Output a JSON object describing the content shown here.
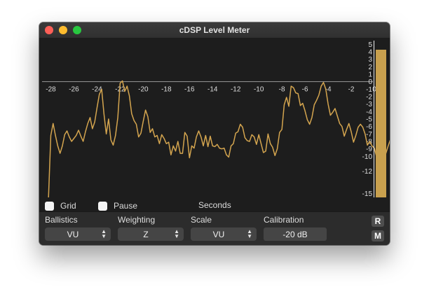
{
  "window": {
    "title": "cDSP Level Meter"
  },
  "options": {
    "grid_label": "Grid",
    "pause_label": "Pause",
    "grid_checked": false,
    "pause_checked": false
  },
  "axis": {
    "x_title": "Seconds"
  },
  "controls": {
    "ballistics": {
      "label": "Ballistics",
      "value": "VU"
    },
    "weighting": {
      "label": "Weighting",
      "value": "Z"
    },
    "scale": {
      "label": "Scale",
      "value": "VU"
    },
    "calibration": {
      "label": "Calibration",
      "value": "-20 dB"
    },
    "r_button": "R",
    "m_button": "M"
  },
  "colors": {
    "trace": "#d4a54f",
    "background": "#1d1d1d",
    "zero_line": "#9a9a9a"
  },
  "chart_data": {
    "type": "line",
    "xlabel": "Seconds",
    "ylabel": "",
    "xlim": [
      -29,
      0
    ],
    "ylim": [
      -15.5,
      5.5
    ],
    "x_ticks": [
      -28,
      -26,
      -24,
      -22,
      -20,
      -18,
      -16,
      -14,
      -12,
      -10,
      -8,
      -6,
      -4,
      -2,
      0
    ],
    "x_tick_labels": [
      "-28",
      "-26",
      "-24",
      "-22",
      "-20",
      "-18",
      "-16",
      "-14",
      "-12",
      "-10",
      "-8",
      "-6",
      "-4",
      "-2",
      "0"
    ],
    "y_ticks": [
      5,
      4,
      3,
      2,
      1,
      0,
      -1,
      -2,
      -3,
      -4,
      -5,
      -6,
      -7,
      -8,
      -9,
      -10,
      -12,
      -15
    ],
    "y_tick_labels": [
      "5",
      "4",
      "3",
      "2",
      "1",
      "0",
      "-1",
      "-2",
      "-3",
      "-4",
      "-5",
      "-6",
      "-7",
      "-8",
      "-9",
      "-10",
      "-12",
      "-15"
    ],
    "grid": false,
    "x_start": -28.2,
    "x_step": 0.2,
    "values": [
      -15.5,
      -7.2,
      -5.6,
      -7.2,
      -8.6,
      -9.6,
      -8.6,
      -7.1,
      -6.6,
      -7.4,
      -8.0,
      -7.6,
      -7.2,
      -6.5,
      -7.3,
      -8.0,
      -6.7,
      -5.6,
      -4.8,
      -6.3,
      -5.4,
      -3.5,
      -1.7,
      -1.0,
      -4.3,
      -7.0,
      -5.0,
      -7.8,
      -8.5,
      -7.2,
      -4.8,
      -0.2,
      0.1,
      -1.3,
      -0.6,
      -1.9,
      -4.3,
      -5.2,
      -5.7,
      -7.4,
      -6.9,
      -5.3,
      -3.8,
      -4.7,
      -6.8,
      -6.3,
      -7.4,
      -7.2,
      -8.3,
      -7.1,
      -7.6,
      -8.3,
      -8.1,
      -9.8,
      -8.6,
      -9.3,
      -8.0,
      -9.6,
      -9.6,
      -6.8,
      -7.3,
      -10.2,
      -8.6,
      -8.9,
      -7.4,
      -6.6,
      -7.4,
      -8.6,
      -7.2,
      -8.7,
      -7.3,
      -8.6,
      -8.7,
      -8.4,
      -8.9,
      -9.0,
      -8.9,
      -9.8,
      -10.1,
      -8.6,
      -8.3,
      -6.9,
      -6.7,
      -5.7,
      -6.1,
      -7.5,
      -7.9,
      -8.0,
      -7.1,
      -7.4,
      -8.4,
      -7.1,
      -8.3,
      -9.5,
      -9.3,
      -7.0,
      -8.3,
      -8.8,
      -9.9,
      -9.0,
      -6.8,
      -6.4,
      -3.1,
      -2.1,
      -3.3,
      -0.6,
      -0.8,
      -1.5,
      -1.6,
      -3.2,
      -2.9,
      -3.9,
      -5.1,
      -5.7,
      -4.8,
      -3.1,
      -2.5,
      -1.8,
      -0.6,
      -0.1,
      -1.0,
      -3.0,
      -4.5,
      -4.1,
      -3.6,
      -4.6,
      -5.6,
      -6.0,
      -7.3,
      -6.4,
      -5.6,
      -6.7,
      -8.1,
      -7.2,
      -6.1,
      -5.7,
      -6.1,
      -7.0,
      -8.5,
      -8.0,
      -8.6,
      -8.9,
      -10.1,
      -8.2,
      -8.0,
      -8.0,
      -9.6,
      -8.6,
      -7.7,
      -7.3,
      -8.5,
      -8.4,
      -9.0,
      -10.2,
      -8.7,
      -9.3,
      -7.9,
      -9.9,
      -9.1,
      -10.0,
      -10.9,
      -8.2,
      -8.2,
      -9.1,
      -8.4,
      -7.6,
      -8.8,
      -8.1,
      -7.5,
      -8.0,
      -6.7,
      -6.7,
      -6.6,
      -6.4,
      -5.8,
      -3.3,
      -2.3,
      -1.8,
      -0.2,
      -1.1,
      -1.5,
      1.4,
      -0.1,
      0.2,
      -0.3,
      -0.1,
      0.7,
      -1.6,
      -0.4,
      -1.9,
      1.3,
      0.8,
      0.9,
      -0.8,
      0.0,
      1.9,
      3.2,
      1.1,
      3.8,
      6.1,
      5.3,
      1.3,
      4.6,
      3.9,
      -0.2,
      -2.3,
      -3.2,
      -0.4,
      0.6,
      -0.4,
      -1.1,
      0.0,
      -1.6,
      -0.7,
      -0.2,
      -2.3,
      -3.6,
      -1.2,
      0.6,
      1.8,
      1.3,
      1.0,
      1.8,
      1.4,
      1.2,
      0.8,
      1.8,
      0.6,
      -0.4,
      -1.7,
      -4.8,
      -6.6,
      -3.2,
      -3.7,
      -4.9,
      -6.8,
      -3.1,
      -1.0,
      0.1,
      -0.7,
      -2.0,
      -3.8,
      -5.4,
      -7.0
    ]
  }
}
